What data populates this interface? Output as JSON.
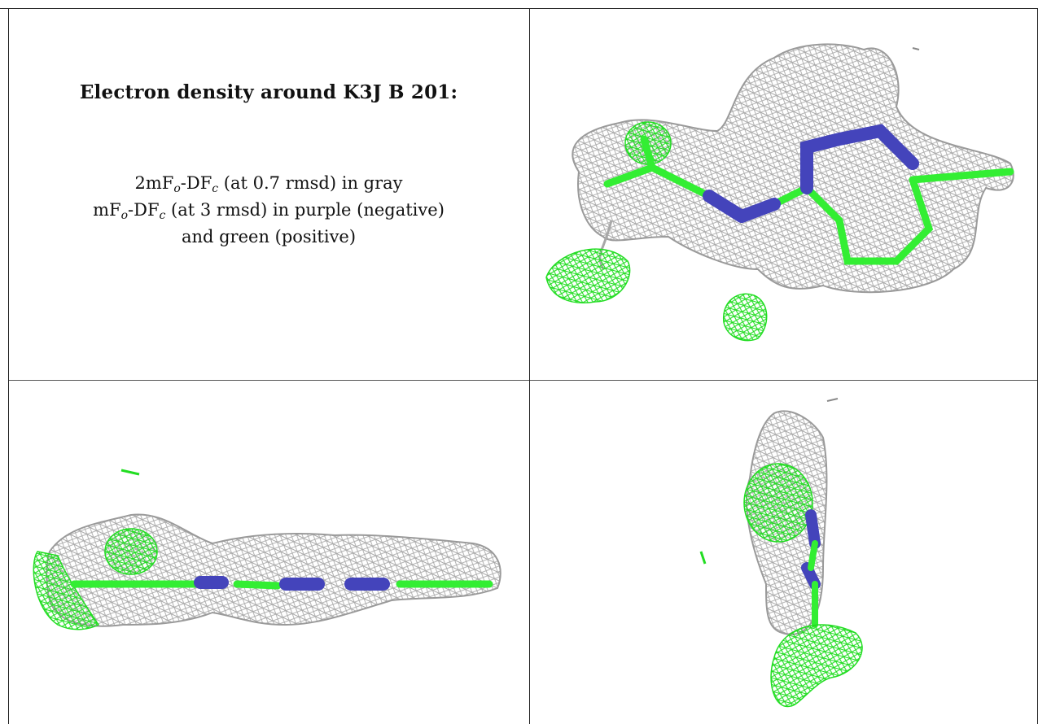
{
  "caption": {
    "title": "Electron density around K3J B 201:",
    "line1_prefix": "2mF",
    "line1_sub1": "o",
    "line1_mid": "-DF",
    "line1_sub2": "c",
    "line1_suffix": " (at 0.7 rmsd) in gray",
    "line2_prefix": "mF",
    "line2_sub1": "o",
    "line2_mid": "-DF",
    "line2_sub2": "c",
    "line2_suffix": " (at 3 rmsd) in purple (negative)",
    "line3": "and green (positive)"
  },
  "colors": {
    "mesh_gray": "#a8a8a8",
    "negative_purple": "#4444bb",
    "positive_green": "#33ee33"
  }
}
